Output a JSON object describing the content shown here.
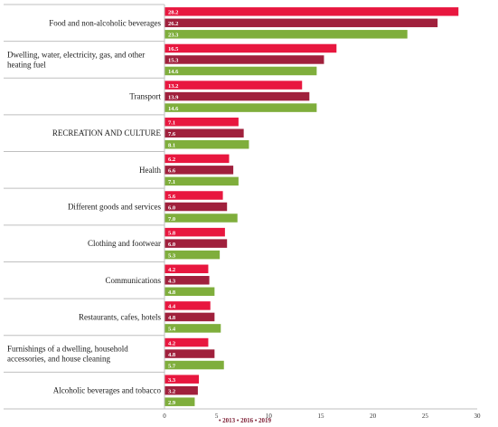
{
  "chart_data": {
    "type": "bar",
    "orientation": "horizontal",
    "categories": [
      "Food and non-alcoholic beverages",
      "Dwelling, water, electricity, gas, and other heating fuel",
      "Transport",
      "RECREATION AND CULTURE",
      "Health",
      "Different goods and services",
      "Clothing and footwear",
      "Communications",
      "Restaurants, cafes, hotels",
      "Furnishings of a dwelling, household accessories, and house cleaning",
      "Alcoholic beverages and tobacco"
    ],
    "category_lines": [
      [
        "Food and non-alcoholic beverages"
      ],
      [
        "Dwelling, water, electricity, gas, and other",
        "heating fuel"
      ],
      [
        "Transport"
      ],
      [
        "RECREATION AND CULTURE"
      ],
      [
        "Health"
      ],
      [
        "Different goods and services"
      ],
      [
        "Clothing and footwear"
      ],
      [
        "Communications"
      ],
      [
        "Restaurants, cafes, hotels"
      ],
      [
        "Furnishings of a dwelling, household",
        "accessories, and house cleaning"
      ],
      [
        "Alcoholic beverages and tobacco"
      ]
    ],
    "series": [
      {
        "name": "2013",
        "color": "#e8173f",
        "values": [
          28.2,
          16.5,
          13.2,
          7.1,
          6.2,
          5.6,
          5.8,
          4.2,
          4.4,
          4.2,
          3.3
        ],
        "labels": [
          "28.2",
          "16.5",
          "13.2",
          "7.1",
          "6.2",
          "5.6",
          "5.8",
          "4.2",
          "4.4",
          "4.2",
          "3.3"
        ]
      },
      {
        "name": "2016",
        "color": "#a0203c",
        "values": [
          26.2,
          15.3,
          13.9,
          7.6,
          6.6,
          6.0,
          6.0,
          4.3,
          4.8,
          4.8,
          3.2
        ],
        "labels": [
          "26.2",
          "15.3",
          "13.9",
          "7.6",
          "6.6",
          "6.0",
          "6.0",
          "4.3",
          "4.8",
          "4.8",
          "3.2"
        ]
      },
      {
        "name": "2019",
        "color": "#7fae3c",
        "values": [
          23.3,
          14.6,
          14.6,
          8.1,
          7.1,
          7.0,
          5.3,
          4.8,
          5.4,
          5.7,
          2.9
        ],
        "labels": [
          "23.3",
          "14.6",
          "14.6",
          "8.1",
          "7.1",
          "7.0",
          "5.3",
          "4.8",
          "5.4",
          "5.7",
          "2.9"
        ]
      }
    ],
    "xlim": [
      0,
      30
    ],
    "xticks": [
      0,
      5,
      10,
      15,
      20,
      25,
      30
    ],
    "xtick_labels": [
      "0",
      "5",
      "10",
      "15",
      "20",
      "25",
      "30"
    ],
    "legend_text": "• 2013 • 2016 • 2019",
    "legend_position": "bottom",
    "grid": false,
    "title": "",
    "xlabel": "",
    "ylabel": ""
  }
}
